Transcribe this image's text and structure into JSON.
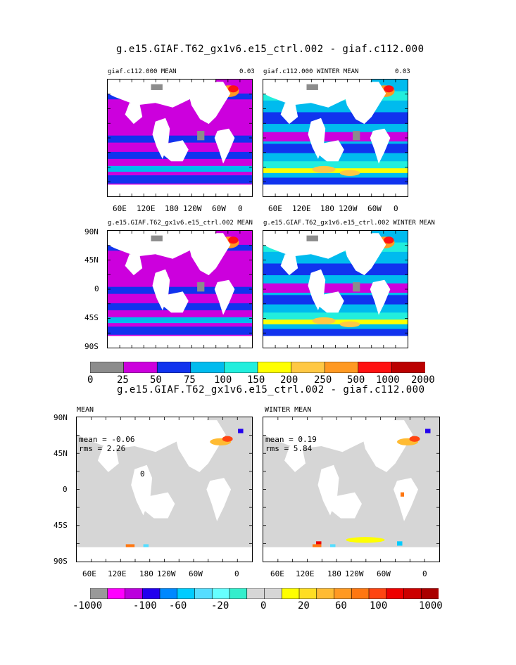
{
  "top_section": {
    "title": "g.e15.GIAF.T62_gx1v6.e15_ctrl.002 - giaf.c112.000",
    "panels": [
      {
        "id": "tl",
        "label": "giaf.c112.000 MEAN",
        "corner": "0.03",
        "field": "mean"
      },
      {
        "id": "tr",
        "label": "giaf.c112.000 WINTER MEAN",
        "corner": "0.03",
        "field": "winter"
      },
      {
        "id": "ml",
        "label": "g.e15.GIAF.T62_gx1v6.e15_ctrl.002 MEAN",
        "corner": "",
        "field": "mean"
      },
      {
        "id": "mr",
        "label": "g.e15.GIAF.T62_gx1v6.e15_ctrl.002 WINTER MEAN",
        "corner": "",
        "field": "winter"
      }
    ],
    "colorbar": {
      "colors": [
        "#8c8c8c",
        "#cc00dd",
        "#1133ee",
        "#00bbee",
        "#22eedd",
        "#ffff00",
        "#ffc844",
        "#ff9922",
        "#ff1111",
        "#bb0000"
      ],
      "labels": [
        "0",
        "25",
        "50",
        "75",
        "100",
        "150",
        "200",
        "250",
        "500",
        "1000",
        "2000"
      ]
    }
  },
  "bottom_section": {
    "title": "g.e15.GIAF.T62_gx1v6.e15_ctrl.002 - giaf.c112.000",
    "panels": [
      {
        "id": "bl",
        "label": "MEAN",
        "stat_mean": "mean = -0.06",
        "stat_rms": "rms = 2.26",
        "contour_label": "0"
      },
      {
        "id": "br",
        "label": "WINTER MEAN",
        "stat_mean": "mean = 0.19",
        "stat_rms": "rms = 5.84",
        "contour_label": ""
      }
    ],
    "colorbar": {
      "colors": [
        "#999999",
        "#ff00ff",
        "#bb00dd",
        "#2200ee",
        "#0088ff",
        "#00ccff",
        "#55ddff",
        "#66ffff",
        "#33eecc",
        "#d6d6d6",
        "#d6d6d6",
        "#ffff00",
        "#ffdd22",
        "#ffbb33",
        "#ff9922",
        "#ff7711",
        "#ff4411",
        "#ee0000",
        "#cc0000",
        "#aa0000"
      ],
      "labels": [
        "-1000",
        "-100",
        "-60",
        "-20",
        "0",
        "20",
        "60",
        "100",
        "1000"
      ]
    }
  },
  "axes": {
    "lon_labels": [
      "60E",
      "120E",
      "180",
      "120W",
      "60W",
      "0"
    ],
    "lat_labels": [
      "90N",
      "45N",
      "0",
      "45S",
      "90S"
    ]
  }
}
